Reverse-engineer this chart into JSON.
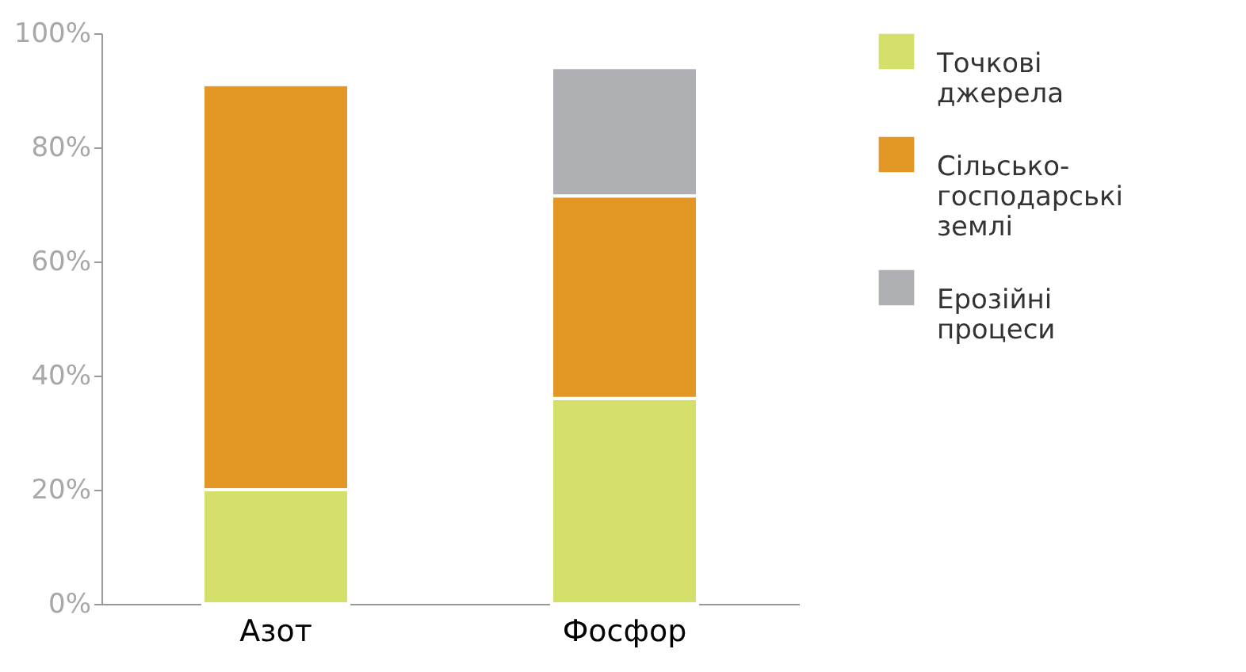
{
  "chart_data": {
    "type": "bar",
    "stacked": true,
    "categories": [
      "Азот",
      "Фосфор"
    ],
    "series": [
      {
        "name": "Точкові джерела",
        "color": "#d4e06a",
        "values": [
          20,
          36
        ]
      },
      {
        "name": "Сільсько-господарські землі",
        "color": "#e29624",
        "values": [
          71,
          35.5
        ]
      },
      {
        "name": "Ерозійні процеси",
        "color": "#aeb0b3",
        "values": [
          null,
          22.5
        ]
      }
    ],
    "ylim": [
      0,
      100
    ],
    "yticks": [
      {
        "value": 0,
        "label": "0%"
      },
      {
        "value": 20,
        "label": "20%"
      },
      {
        "value": 40,
        "label": "40%"
      },
      {
        "value": 60,
        "label": "60%"
      },
      {
        "value": 80,
        "label": "80%"
      },
      {
        "value": 100,
        "label": "100%"
      }
    ],
    "grid": false,
    "legend": "right"
  }
}
